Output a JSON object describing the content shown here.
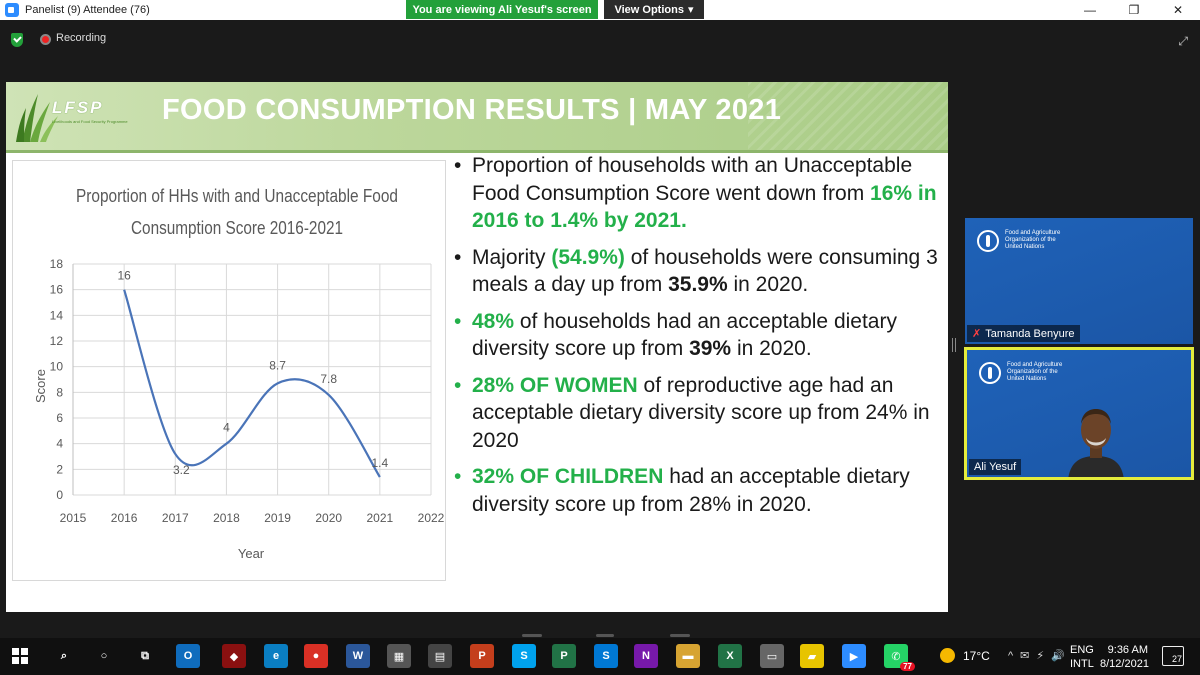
{
  "window": {
    "title": "Panelist (9) Attendee (76)",
    "controls": {
      "minimize": "—",
      "restore": "❐",
      "close": "✕"
    }
  },
  "share": {
    "banner": "You are viewing Ali Yesuf's screen",
    "view_options": "View Options",
    "view_options_caret": "▾"
  },
  "meeting": {
    "recording_label": "Recording",
    "expand_glyph": "⤢"
  },
  "slide": {
    "logo_text": "LFSP",
    "logo_subtext": "Livelihoods and Food Security Programme",
    "title": "FOOD CONSUMPTION RESULTS | MAY 2021",
    "bullets": [
      {
        "marker_color": "black",
        "parts": [
          {
            "text": "Proportion of households with an Unacceptable Food Consumption Score went down from ",
            "style": "normal"
          },
          {
            "text": "16% in 2016 to 1.4% by 2021.",
            "style": "green"
          }
        ]
      },
      {
        "marker_color": "black",
        "parts": [
          {
            "text": "Majority ",
            "style": "normal"
          },
          {
            "text": "(54.9%)",
            "style": "green"
          },
          {
            "text": " of households were consuming 3 meals a day up from ",
            "style": "normal"
          },
          {
            "text": "35.9%",
            "style": "bold"
          },
          {
            "text": " in 2020.",
            "style": "normal"
          }
        ]
      },
      {
        "marker_color": "green",
        "parts": [
          {
            "text": "48%",
            "style": "green"
          },
          {
            "text": " of households had an acceptable dietary diversity score up from ",
            "style": "normal"
          },
          {
            "text": "39%",
            "style": "bold"
          },
          {
            "text": " in 2020.",
            "style": "normal"
          }
        ]
      },
      {
        "marker_color": "green",
        "parts": [
          {
            "text": "28% OF WOMEN",
            "style": "green"
          },
          {
            "text": " of reproductive age had an acceptable dietary diversity score up from 24% in 2020",
            "style": "normal"
          }
        ]
      },
      {
        "marker_color": "green",
        "parts": [
          {
            "text": "32% OF CHILDREN",
            "style": "green"
          },
          {
            "text": " had an acceptable dietary diversity score up from 28% in 2020.",
            "style": "normal"
          }
        ]
      }
    ]
  },
  "chart_data": {
    "type": "line",
    "title_lines": [
      "Proportion of HHs with and Unacceptable Food",
      "Consumption Score 2016-2021"
    ],
    "xlabel": "Year",
    "ylabel": "Score",
    "x": [
      2016,
      2017,
      2018,
      2019,
      2020,
      2021
    ],
    "values": [
      16,
      3.2,
      4,
      8.7,
      7.8,
      1.4
    ],
    "data_labels": [
      "16",
      "3.2",
      "4",
      "8.7",
      "7.8",
      "1.4"
    ],
    "xlim": [
      2015,
      2022
    ],
    "ylim": [
      0,
      18
    ],
    "x_ticks": [
      "2015",
      "2016",
      "2017",
      "2018",
      "2019",
      "2020",
      "2021",
      "2022"
    ],
    "y_ticks": [
      "0",
      "2",
      "4",
      "6",
      "8",
      "10",
      "12",
      "14",
      "16",
      "18"
    ],
    "grid": true,
    "smoothed": true,
    "series_color": "#4a74b8"
  },
  "participants": [
    {
      "name": "Tamanda Benyure",
      "muted": true,
      "org_text": [
        "Food and Agriculture",
        "Organization of the",
        "United Nations"
      ]
    },
    {
      "name": "Ali Yesuf",
      "muted": false,
      "active_speaker": true,
      "org_text": [
        "Food and Agriculture",
        "Organization of the",
        "United Nations"
      ]
    }
  ],
  "taskbar": {
    "apps": [
      {
        "name": "windows-start",
        "glyph": "",
        "color": ""
      },
      {
        "name": "search",
        "glyph": "⌕",
        "color": ""
      },
      {
        "name": "cortana",
        "glyph": "○",
        "color": ""
      },
      {
        "name": "task-view",
        "glyph": "⧉",
        "color": ""
      },
      {
        "name": "outlook",
        "glyph": "O",
        "color": "#0f6cbd"
      },
      {
        "name": "app-red",
        "glyph": "◆",
        "color": "#8a1010"
      },
      {
        "name": "edge",
        "glyph": "e",
        "color": "#0a7ec2"
      },
      {
        "name": "chrome",
        "glyph": "●",
        "color": "#d93025"
      },
      {
        "name": "word",
        "glyph": "W",
        "color": "#2b579a"
      },
      {
        "name": "calculator",
        "glyph": "▦",
        "color": "#555555"
      },
      {
        "name": "store",
        "glyph": "▤",
        "color": "#444444"
      },
      {
        "name": "powerpoint",
        "glyph": "P",
        "color": "#c43e1c"
      },
      {
        "name": "skype-s",
        "glyph": "S",
        "color": "#00a2ed"
      },
      {
        "name": "project",
        "glyph": "P",
        "color": "#217346"
      },
      {
        "name": "skype",
        "glyph": "S",
        "color": "#0078d4"
      },
      {
        "name": "onenote",
        "glyph": "N",
        "color": "#7719aa"
      },
      {
        "name": "file-explorer",
        "glyph": "▬",
        "color": "#d7a432"
      },
      {
        "name": "excel",
        "glyph": "X",
        "color": "#217346"
      },
      {
        "name": "network-app",
        "glyph": "▭",
        "color": "#666666"
      },
      {
        "name": "sticky-notes",
        "glyph": "▰",
        "color": "#e7c400"
      },
      {
        "name": "zoom",
        "glyph": "▶",
        "color": "#2d8cff"
      },
      {
        "name": "whatsapp",
        "glyph": "✆",
        "color": "#25d366"
      }
    ],
    "whatsapp_badge": "77",
    "temperature": "17°C",
    "tray_icons": [
      "^",
      "✉",
      "⚡",
      "🔊"
    ],
    "lang_line1": "ENG",
    "lang_line2": "INTL",
    "time": "9:36 AM",
    "date": "8/12/2021",
    "notifications": "27"
  }
}
